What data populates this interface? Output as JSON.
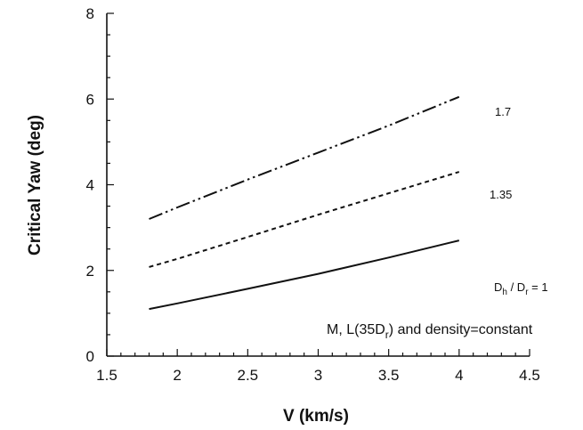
{
  "chart_data": {
    "type": "line",
    "title": "",
    "xlabel": "V (km/s)",
    "ylabel": "Critical Yaw (deg)",
    "xlim": [
      1.5,
      4.5
    ],
    "ylim": [
      0,
      8
    ],
    "xticks": [
      1.5,
      2,
      2.5,
      3,
      3.5,
      4,
      4.5
    ],
    "xtick_labels": [
      "1.5",
      "2",
      "2.5",
      "3",
      "3.5",
      "4",
      "4.5"
    ],
    "yticks": [
      0,
      2,
      4,
      6,
      8
    ],
    "ytick_labels": [
      "0",
      "2",
      "4",
      "6",
      "8"
    ],
    "grid": false,
    "legend": "none",
    "series": [
      {
        "label_text": "Dh / Dr = 1",
        "label_main": "D",
        "label_sub1": "h",
        "label_mid": " / D",
        "label_sub2": "r",
        "label_end": " = 1",
        "line_style": "solid",
        "x": [
          1.8,
          2.0,
          2.5,
          3.0,
          3.5,
          4.0
        ],
        "y": [
          1.1,
          1.23,
          1.57,
          1.92,
          2.3,
          2.7
        ]
      },
      {
        "label_text": "1.35",
        "line_style": "dashed",
        "x": [
          1.8,
          2.0,
          2.5,
          3.0,
          3.5,
          4.0
        ],
        "y": [
          2.08,
          2.27,
          2.78,
          3.3,
          3.8,
          4.3
        ]
      },
      {
        "label_text": "1.7",
        "line_style": "dash-dot-dot",
        "x": [
          1.8,
          2.0,
          2.5,
          3.0,
          3.5,
          4.0
        ],
        "y": [
          3.2,
          3.47,
          4.12,
          4.75,
          5.38,
          6.05
        ]
      }
    ],
    "annotation": {
      "part1": "M,  L(35D",
      "sub": "r",
      "part2": ")  and  density=constant"
    }
  }
}
